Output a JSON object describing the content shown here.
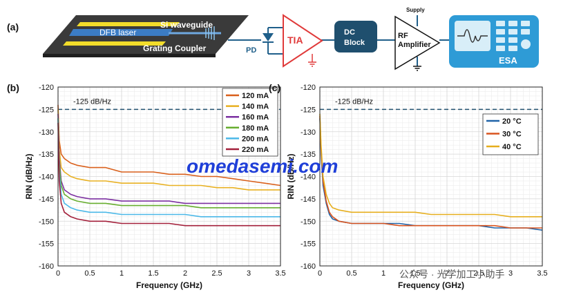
{
  "schematic": {
    "label": "(a)",
    "chip": {
      "laser": "DFB laser",
      "waveguide": "Si waveguide",
      "coupler": "Grating Coupler"
    },
    "pd": "PD",
    "tia": "TIA",
    "dc_block": [
      "DC",
      "Block"
    ],
    "rf_amp": [
      "RF",
      "Amplifier"
    ],
    "supply": "Supply",
    "esa": "ESA"
  },
  "watermark": {
    "site": "omedasemi.com",
    "wechat": "公众号 · 光学加工小助手"
  },
  "colors": {
    "tia": "#e03a3a",
    "dc_block": "#1f4f6e",
    "esa_bg": "#2e9bd6",
    "line": "#1f5f8a",
    "dash": "#1f4f6e"
  },
  "chart_data": [
    {
      "type": "line",
      "panel_label": "(b)",
      "xlabel": "Frequency (GHz)",
      "ylabel": "RIN (dB/Hz)",
      "xlim": [
        0,
        3.5
      ],
      "ylim": [
        -160,
        -120
      ],
      "xticks": [
        "0",
        "0.5",
        "1",
        "1.5",
        "2",
        "2.5",
        "3",
        "3.5"
      ],
      "yticks": [
        "-120",
        "-125",
        "-130",
        "-135",
        "-140",
        "-145",
        "-150",
        "-155",
        "-160"
      ],
      "grid": true,
      "legend": "top-right",
      "reference_line": {
        "y": -125,
        "label": "-125 dB/Hz"
      },
      "x": [
        0.0,
        0.02,
        0.05,
        0.1,
        0.2,
        0.3,
        0.5,
        0.75,
        1.0,
        1.25,
        1.5,
        1.75,
        2.0,
        2.25,
        2.5,
        2.75,
        3.0,
        3.25,
        3.5
      ],
      "series": [
        {
          "name": "120 mA",
          "color": "#d95f1a",
          "values": [
            -124,
            -132,
            -135,
            -136,
            -137,
            -137.5,
            -138,
            -138,
            -139,
            -139,
            -139,
            -139.5,
            -139.5,
            -140,
            -140,
            -140.5,
            -141,
            -141.5,
            -142
          ]
        },
        {
          "name": "140 mA",
          "color": "#e8b020",
          "values": [
            -125,
            -134,
            -138,
            -139,
            -140,
            -140.5,
            -141,
            -141,
            -141.5,
            -141.5,
            -141.5,
            -142,
            -142,
            -142,
            -142.5,
            -142.5,
            -143,
            -143,
            -143
          ]
        },
        {
          "name": "160 mA",
          "color": "#7b2fa0",
          "values": [
            -126,
            -136,
            -141,
            -143,
            -144,
            -144.5,
            -145,
            -145,
            -145.5,
            -145.5,
            -145.5,
            -145.5,
            -146,
            -146,
            -146,
            -146,
            -146,
            -146,
            -146
          ]
        },
        {
          "name": "180 mA",
          "color": "#66ad2e",
          "values": [
            -127,
            -137,
            -142,
            -144,
            -145,
            -145.5,
            -146,
            -146,
            -146.5,
            -146.5,
            -146.5,
            -146.5,
            -146.5,
            -147,
            -147,
            -147,
            -147,
            -147,
            -147
          ]
        },
        {
          "name": "200 mA",
          "color": "#4ab8e8",
          "values": [
            -127,
            -139,
            -144,
            -146,
            -147,
            -147.5,
            -148,
            -148,
            -148.5,
            -148.5,
            -148.5,
            -148.5,
            -148.5,
            -149,
            -149,
            -149,
            -149,
            -149,
            -149
          ]
        },
        {
          "name": "220 mA",
          "color": "#a31f3a",
          "values": [
            -128,
            -141,
            -146,
            -148,
            -149,
            -149.5,
            -150,
            -150,
            -150.5,
            -150.5,
            -150.5,
            -150.5,
            -151,
            -151,
            -151,
            -151,
            -151,
            -151,
            -151
          ]
        }
      ]
    },
    {
      "type": "line",
      "panel_label": "(c)",
      "xlabel": "Frequency (GHz)",
      "ylabel": "RIN (dB/Hz)",
      "xlim": [
        0,
        3.5
      ],
      "ylim": [
        -160,
        -120
      ],
      "xticks": [
        "0",
        "0.5",
        "1",
        "1.5",
        "2",
        "2.5",
        "3",
        "3.5"
      ],
      "yticks": [
        "-120",
        "-125",
        "-130",
        "-135",
        "-140",
        "-145",
        "-150",
        "-155",
        "-160"
      ],
      "grid": true,
      "legend": "top-right",
      "reference_line": {
        "y": -125,
        "label": "-125 dB/Hz"
      },
      "x": [
        0.0,
        0.02,
        0.05,
        0.1,
        0.15,
        0.2,
        0.3,
        0.5,
        0.75,
        1.0,
        1.25,
        1.5,
        1.75,
        2.0,
        2.25,
        2.5,
        2.75,
        3.0,
        3.25,
        3.5
      ],
      "series": [
        {
          "name": "20 °C",
          "color": "#1f63a8",
          "values": [
            -127,
            -135,
            -142,
            -146,
            -148.5,
            -149.5,
            -150,
            -150.5,
            -150.5,
            -150.5,
            -150.5,
            -151,
            -151,
            -151,
            -151,
            -151,
            -151.5,
            -151.5,
            -151.5,
            -152
          ]
        },
        {
          "name": "30 °C",
          "color": "#d9531e",
          "values": [
            -126.5,
            -134,
            -141,
            -145.5,
            -148,
            -149,
            -150,
            -150.5,
            -150.5,
            -150.5,
            -151,
            -151,
            -151,
            -151,
            -151,
            -151,
            -151,
            -151.5,
            -151.5,
            -151.5
          ]
        },
        {
          "name": "40 °C",
          "color": "#e6ae1c",
          "values": [
            -126,
            -133,
            -140,
            -144,
            -146,
            -147,
            -147.5,
            -148,
            -148,
            -148,
            -148,
            -148,
            -148.5,
            -148.5,
            -148.5,
            -148.5,
            -148.5,
            -149,
            -149,
            -149
          ]
        }
      ]
    }
  ]
}
